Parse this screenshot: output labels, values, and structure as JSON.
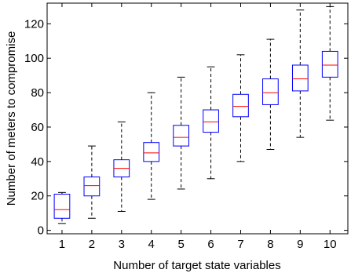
{
  "chart_data": {
    "type": "box",
    "xlabel": "Number of target state variables",
    "ylabel": "Number of meters to compromise",
    "ylim": [
      -2,
      132
    ],
    "yticks": [
      0,
      20,
      40,
      60,
      80,
      100,
      120
    ],
    "categories": [
      "1",
      "2",
      "3",
      "4",
      "5",
      "6",
      "7",
      "8",
      "9",
      "10"
    ],
    "boxes": [
      {
        "category": "1",
        "whisker_low": 4,
        "q1": 7,
        "median": 12,
        "q3": 21,
        "whisker_high": 22
      },
      {
        "category": "2",
        "whisker_low": 7,
        "q1": 20,
        "median": 26,
        "q3": 31,
        "whisker_high": 49
      },
      {
        "category": "3",
        "whisker_low": 11,
        "q1": 31,
        "median": 36,
        "q3": 41,
        "whisker_high": 63
      },
      {
        "category": "4",
        "whisker_low": 18,
        "q1": 40,
        "median": 45,
        "q3": 51,
        "whisker_high": 80
      },
      {
        "category": "5",
        "whisker_low": 24,
        "q1": 49,
        "median": 54,
        "q3": 61,
        "whisker_high": 89
      },
      {
        "category": "6",
        "whisker_low": 30,
        "q1": 57,
        "median": 63,
        "q3": 70,
        "whisker_high": 95
      },
      {
        "category": "7",
        "whisker_low": 40,
        "q1": 66,
        "median": 72,
        "q3": 79,
        "whisker_high": 102
      },
      {
        "category": "8",
        "whisker_low": 47,
        "q1": 73,
        "median": 80,
        "q3": 88,
        "whisker_high": 111
      },
      {
        "category": "9",
        "whisker_low": 54,
        "q1": 81,
        "median": 88,
        "q3": 96,
        "whisker_high": 128
      },
      {
        "category": "10",
        "whisker_low": 64,
        "q1": 89,
        "median": 96,
        "q3": 104,
        "whisker_high": 130
      }
    ],
    "grid": false,
    "legend": false,
    "colors": {
      "box": "#0000ff",
      "median": "#ff0000",
      "whisker": "#000000",
      "axis": "#000000"
    }
  }
}
